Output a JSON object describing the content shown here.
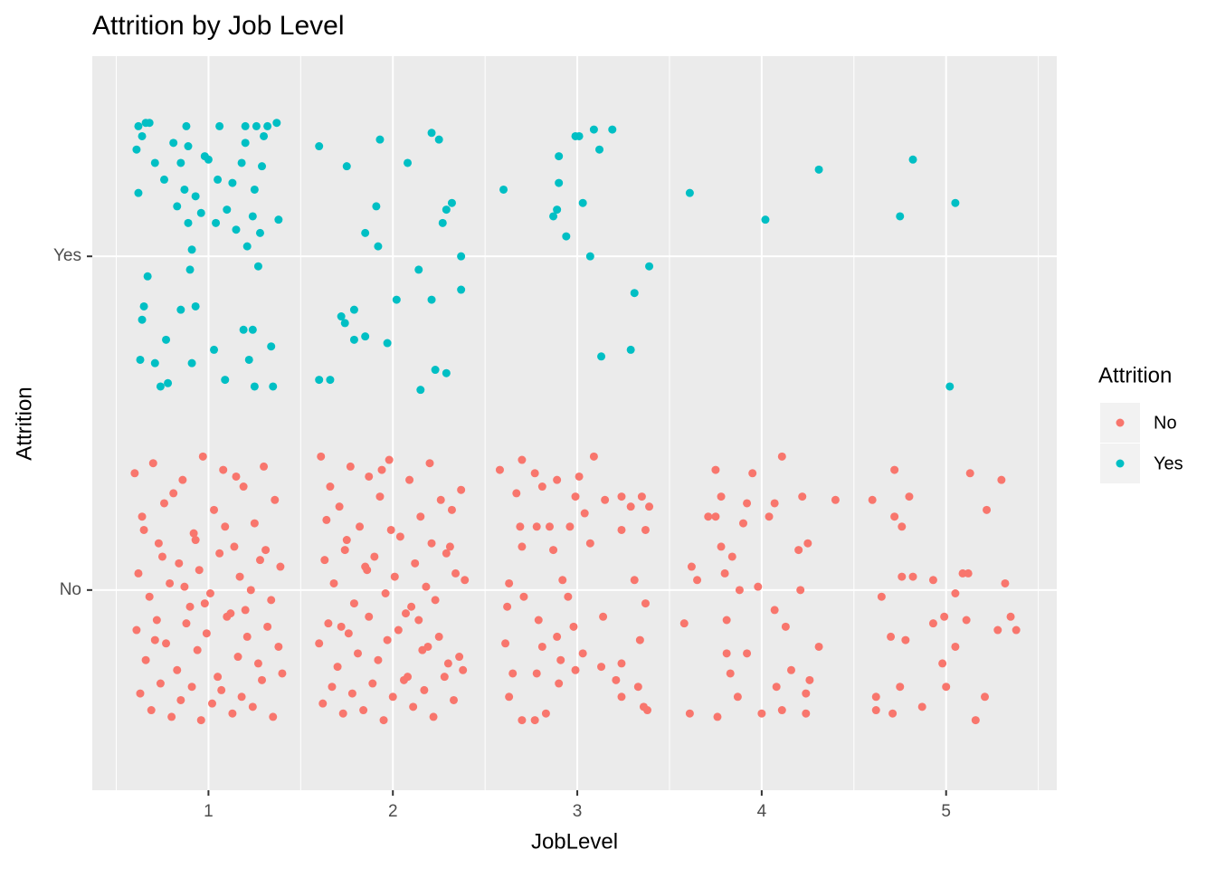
{
  "chart_data": {
    "type": "scatter",
    "title": "Attrition by Job Level",
    "x_label": "JobLevel",
    "y_label": "Attrition",
    "legend_title": "Attrition",
    "legend_position": "right",
    "grid": true,
    "xlim": [
      0.37,
      5.6
    ],
    "xticks": [
      1,
      2,
      3,
      4,
      5
    ],
    "x_minor_ticks": [
      0.5,
      1.5,
      2.5,
      3.5,
      4.5,
      5.5
    ],
    "ylim": [
      0.4,
      2.6
    ],
    "yticks": [
      {
        "value": 1,
        "label": "No"
      },
      {
        "value": 2,
        "label": "Yes"
      }
    ],
    "series": [
      {
        "name": "No",
        "color": "#F8766D",
        "x": [
          0.6,
          0.64,
          0.7,
          0.75,
          0.81,
          0.86,
          0.92,
          0.97,
          1.03,
          1.08,
          1.14,
          1.19,
          1.25,
          1.3,
          1.36,
          0.62,
          0.68,
          0.73,
          0.79,
          0.84,
          0.9,
          0.95,
          1.01,
          1.06,
          1.12,
          1.17,
          1.23,
          1.28,
          1.34,
          1.39,
          0.61,
          0.66,
          0.72,
          0.77,
          0.83,
          0.88,
          0.94,
          0.99,
          1.05,
          1.1,
          1.16,
          1.21,
          1.27,
          1.32,
          1.38,
          0.63,
          0.69,
          0.74,
          0.8,
          0.85,
          0.91,
          0.96,
          1.02,
          1.07,
          1.13,
          1.18,
          1.24,
          1.29,
          1.35,
          1.4,
          0.65,
          0.76,
          0.87,
          0.98,
          1.09,
          1.2,
          1.31,
          0.71,
          0.93,
          1.15,
          1.61,
          1.66,
          1.71,
          1.77,
          1.82,
          1.87,
          1.93,
          1.98,
          2.04,
          2.09,
          2.15,
          2.2,
          2.26,
          2.31,
          2.37,
          1.63,
          1.68,
          1.74,
          1.79,
          1.85,
          1.9,
          1.96,
          2.01,
          2.07,
          2.12,
          2.18,
          2.23,
          2.29,
          2.34,
          2.39,
          1.6,
          1.65,
          1.7,
          1.76,
          1.81,
          1.87,
          1.92,
          1.97,
          2.03,
          2.08,
          2.14,
          2.19,
          2.25,
          2.3,
          2.36,
          1.62,
          1.67,
          1.73,
          1.78,
          1.84,
          1.89,
          1.95,
          2.0,
          2.06,
          2.11,
          2.17,
          2.22,
          2.28,
          2.33,
          2.38,
          1.64,
          1.75,
          1.86,
          1.99,
          2.1,
          2.21,
          2.32,
          1.72,
          1.94,
          2.16,
          2.58,
          2.7,
          2.77,
          3.09,
          3.01,
          2.89,
          2.67,
          2.81,
          2.99,
          3.15,
          3.24,
          3.35,
          3.39,
          3.04,
          3.29,
          2.69,
          2.78,
          2.85,
          2.96,
          3.24,
          3.37,
          2.7,
          2.87,
          3.07,
          2.92,
          3.31,
          2.63,
          2.95,
          3.37,
          2.71,
          2.62,
          2.79,
          2.98,
          3.14,
          2.89,
          2.61,
          2.81,
          3.03,
          2.91,
          2.99,
          3.24,
          3.13,
          2.65,
          2.78,
          2.9,
          3.21,
          3.33,
          2.63,
          3.24,
          3.36,
          2.7,
          2.83,
          2.77,
          3.38,
          3.34,
          3.61,
          3.76,
          4.0,
          4.11,
          4.24,
          3.75,
          3.95,
          4.11,
          3.78,
          3.92,
          4.07,
          4.22,
          4.4,
          3.71,
          3.75,
          3.9,
          4.04,
          3.78,
          3.62,
          3.8,
          3.65,
          3.88,
          3.98,
          4.2,
          4.25,
          4.21,
          4.07,
          3.81,
          4.13,
          4.31,
          3.92,
          3.81,
          4.16,
          4.26,
          3.83,
          3.87,
          4.08,
          4.24,
          3.58,
          3.84,
          4.6,
          4.72,
          4.8,
          4.76,
          4.72,
          5.13,
          5.3,
          5.22,
          4.76,
          4.82,
          4.93,
          5.09,
          5.12,
          5.32,
          5.05,
          4.65,
          4.99,
          4.93,
          5.11,
          5.35,
          5.38,
          5.28,
          4.7,
          4.78,
          4.98,
          4.75,
          5.0,
          4.62,
          5.21,
          4.62,
          4.71,
          4.87,
          5.16,
          5.05
        ],
        "values": [
          1.35,
          1.22,
          1.38,
          1.1,
          1.29,
          1.33,
          1.17,
          1.4,
          1.24,
          1.36,
          1.13,
          1.31,
          1.2,
          1.37,
          1.27,
          1.05,
          0.98,
          1.14,
          1.02,
          1.08,
          0.95,
          1.06,
          0.99,
          1.11,
          0.93,
          1.04,
          1.0,
          1.09,
          0.97,
          1.07,
          0.88,
          0.79,
          0.91,
          0.84,
          0.76,
          0.9,
          0.82,
          0.87,
          0.74,
          0.92,
          0.8,
          0.86,
          0.78,
          0.89,
          0.83,
          0.69,
          0.64,
          0.72,
          0.62,
          0.67,
          0.71,
          0.61,
          0.66,
          0.7,
          0.63,
          0.68,
          0.65,
          0.73,
          0.62,
          0.75,
          1.18,
          1.26,
          1.01,
          0.96,
          1.19,
          0.94,
          1.12,
          0.85,
          1.15,
          1.34,
          1.4,
          1.31,
          1.25,
          1.37,
          1.19,
          1.34,
          1.28,
          1.39,
          1.16,
          1.33,
          1.22,
          1.38,
          1.27,
          1.13,
          1.3,
          1.09,
          1.02,
          1.12,
          0.96,
          1.07,
          1.1,
          0.99,
          1.04,
          0.93,
          1.08,
          1.01,
          0.97,
          1.11,
          1.05,
          1.03,
          0.84,
          0.9,
          0.77,
          0.87,
          0.81,
          0.92,
          0.79,
          0.85,
          0.88,
          0.74,
          0.91,
          0.83,
          0.86,
          0.78,
          0.8,
          0.66,
          0.71,
          0.63,
          0.69,
          0.64,
          0.72,
          0.61,
          0.68,
          0.73,
          0.65,
          0.7,
          0.62,
          0.74,
          0.67,
          0.76,
          1.21,
          1.15,
          1.06,
          1.18,
          0.95,
          1.14,
          1.24,
          0.89,
          1.36,
          0.82,
          1.36,
          1.39,
          1.35,
          1.4,
          1.34,
          1.33,
          1.29,
          1.31,
          1.28,
          1.27,
          1.28,
          1.28,
          1.25,
          1.23,
          1.25,
          1.19,
          1.19,
          1.19,
          1.19,
          1.18,
          1.18,
          1.13,
          1.12,
          1.14,
          1.03,
          1.03,
          1.02,
          0.98,
          0.96,
          0.98,
          0.95,
          0.91,
          0.89,
          0.92,
          0.86,
          0.84,
          0.83,
          0.81,
          0.79,
          0.76,
          0.78,
          0.77,
          0.75,
          0.75,
          0.72,
          0.73,
          0.71,
          0.68,
          0.68,
          0.65,
          0.61,
          0.63,
          0.61,
          0.64,
          0.85,
          0.63,
          0.62,
          0.63,
          0.64,
          0.63,
          1.36,
          1.35,
          1.4,
          1.28,
          1.26,
          1.26,
          1.28,
          1.27,
          1.22,
          1.22,
          1.2,
          1.22,
          1.13,
          1.07,
          1.05,
          1.03,
          1.0,
          1.01,
          1.12,
          1.14,
          1.0,
          0.94,
          0.91,
          0.89,
          0.83,
          0.81,
          0.81,
          0.76,
          0.73,
          0.75,
          0.68,
          0.71,
          0.69,
          0.9,
          1.1,
          1.27,
          1.36,
          1.28,
          1.19,
          1.22,
          1.35,
          1.33,
          1.24,
          1.04,
          1.04,
          1.03,
          1.05,
          1.05,
          1.02,
          0.99,
          0.98,
          0.92,
          0.9,
          0.91,
          0.92,
          0.88,
          0.88,
          0.86,
          0.85,
          0.78,
          0.71,
          0.71,
          0.68,
          0.68,
          0.64,
          0.63,
          0.65,
          0.61,
          0.83
        ]
      },
      {
        "name": "Yes",
        "color": "#00BFC4",
        "x": [
          0.62,
          0.66,
          0.68,
          0.88,
          1.06,
          1.2,
          1.26,
          1.32,
          1.37,
          0.64,
          0.81,
          0.89,
          0.98,
          1.2,
          1.3,
          0.61,
          0.71,
          0.85,
          1.0,
          1.18,
          1.29,
          0.76,
          0.87,
          0.93,
          1.05,
          1.13,
          1.25,
          0.62,
          0.83,
          0.96,
          1.1,
          1.24,
          1.38,
          0.89,
          1.04,
          1.15,
          1.28,
          0.91,
          1.21,
          0.67,
          0.9,
          1.27,
          0.65,
          0.85,
          0.93,
          1.19,
          0.77,
          1.03,
          0.63,
          0.91,
          1.22,
          1.09,
          0.74,
          0.78,
          1.25,
          1.35,
          1.34,
          0.64,
          1.24,
          0.71,
          1.6,
          1.75,
          1.93,
          2.08,
          2.21,
          2.25,
          1.91,
          2.32,
          2.29,
          2.27,
          1.85,
          1.92,
          2.37,
          2.14,
          2.37,
          2.21,
          2.02,
          1.72,
          1.74,
          1.79,
          1.85,
          1.79,
          1.97,
          1.6,
          1.66,
          2.23,
          2.29,
          2.15,
          2.6,
          2.99,
          3.01,
          3.09,
          3.19,
          3.12,
          2.9,
          2.9,
          3.03,
          2.87,
          2.89,
          2.94,
          3.07,
          3.39,
          3.31,
          3.29,
          3.13,
          3.61,
          4.02,
          4.31,
          4.82,
          4.75,
          5.05,
          5.02
        ],
        "values": [
          2.39,
          2.4,
          2.4,
          2.39,
          2.39,
          2.39,
          2.39,
          2.39,
          2.4,
          2.36,
          2.34,
          2.33,
          2.3,
          2.34,
          2.36,
          2.32,
          2.28,
          2.28,
          2.29,
          2.28,
          2.27,
          2.23,
          2.2,
          2.18,
          2.23,
          2.22,
          2.2,
          2.19,
          2.15,
          2.13,
          2.14,
          2.12,
          2.11,
          2.1,
          2.1,
          2.08,
          2.07,
          2.02,
          2.03,
          1.94,
          1.96,
          1.97,
          1.85,
          1.84,
          1.85,
          1.78,
          1.75,
          1.72,
          1.69,
          1.68,
          1.69,
          1.63,
          1.61,
          1.62,
          1.61,
          1.61,
          1.73,
          1.81,
          1.78,
          1.68,
          2.33,
          2.27,
          2.35,
          2.28,
          2.37,
          2.35,
          2.15,
          2.16,
          2.14,
          2.1,
          2.07,
          2.03,
          2.0,
          1.96,
          1.9,
          1.87,
          1.87,
          1.82,
          1.8,
          1.84,
          1.76,
          1.75,
          1.74,
          1.63,
          1.63,
          1.66,
          1.65,
          1.6,
          2.2,
          2.36,
          2.36,
          2.38,
          2.38,
          2.32,
          2.3,
          2.22,
          2.16,
          2.12,
          2.14,
          2.06,
          2.0,
          1.97,
          1.89,
          1.72,
          1.7,
          2.19,
          2.11,
          2.26,
          2.29,
          2.12,
          2.16,
          1.61
        ]
      }
    ]
  }
}
